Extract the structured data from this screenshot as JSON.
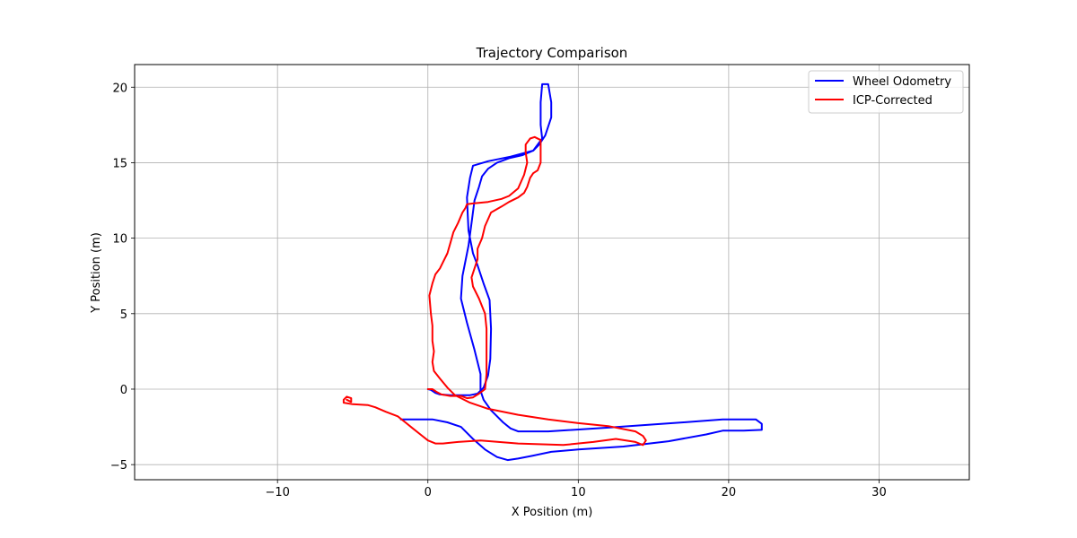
{
  "chart_data": {
    "type": "line",
    "title": "Trajectory Comparison",
    "xlabel": "X Position (m)",
    "ylabel": "Y Position (m)",
    "xlim": [
      -19.5,
      36
    ],
    "ylim": [
      -6,
      21.5
    ],
    "xticks": [
      -10,
      0,
      10,
      20,
      30
    ],
    "yticks": [
      -5,
      0,
      5,
      10,
      15,
      20
    ],
    "xtick_labels": [
      "−10",
      "0",
      "10",
      "20",
      "30"
    ],
    "ytick_labels": [
      "−5",
      "0",
      "5",
      "10",
      "15",
      "20"
    ],
    "grid": true,
    "legend_position": "top-right",
    "series": [
      {
        "name": "Wheel Odometry",
        "color": "#0000ff",
        "points": [
          [
            -1.8,
            -2.0
          ],
          [
            0.3,
            -2.0
          ],
          [
            1.3,
            -2.2
          ],
          [
            2.2,
            -2.5
          ],
          [
            3.0,
            -3.3
          ],
          [
            3.8,
            -4.0
          ],
          [
            4.6,
            -4.5
          ],
          [
            5.3,
            -4.7
          ],
          [
            6.0,
            -4.6
          ],
          [
            7.0,
            -4.4
          ],
          [
            8.2,
            -4.15
          ],
          [
            10.0,
            -4.0
          ],
          [
            13.0,
            -3.8
          ],
          [
            16.0,
            -3.45
          ],
          [
            18.5,
            -3.0
          ],
          [
            19.6,
            -2.75
          ],
          [
            21.0,
            -2.75
          ],
          [
            22.2,
            -2.7
          ],
          [
            22.2,
            -2.3
          ],
          [
            21.8,
            -2.0
          ],
          [
            19.6,
            -2.0
          ],
          [
            17.0,
            -2.2
          ],
          [
            12.0,
            -2.55
          ],
          [
            8.0,
            -2.8
          ],
          [
            6.0,
            -2.8
          ],
          [
            5.5,
            -2.6
          ],
          [
            5.0,
            -2.2
          ],
          [
            4.2,
            -1.4
          ],
          [
            3.7,
            -0.7
          ],
          [
            3.5,
            -0.1
          ],
          [
            3.5,
            1.0
          ],
          [
            3.1,
            2.6
          ],
          [
            2.6,
            4.4
          ],
          [
            2.2,
            6.0
          ],
          [
            2.3,
            7.5
          ],
          [
            2.7,
            9.5
          ],
          [
            2.9,
            11.0
          ],
          [
            3.1,
            12.5
          ],
          [
            3.4,
            13.4
          ],
          [
            3.6,
            14.1
          ],
          [
            4.0,
            14.6
          ],
          [
            4.6,
            15.0
          ],
          [
            5.4,
            15.3
          ],
          [
            6.3,
            15.5
          ],
          [
            7.0,
            15.8
          ],
          [
            7.4,
            16.2
          ],
          [
            7.8,
            16.8
          ],
          [
            8.2,
            18.0
          ],
          [
            8.2,
            19.0
          ],
          [
            8.0,
            20.2
          ],
          [
            7.6,
            20.2
          ],
          [
            7.5,
            19.0
          ],
          [
            7.5,
            17.5
          ],
          [
            7.6,
            16.6
          ],
          [
            7.0,
            15.8
          ],
          [
            5.5,
            15.4
          ],
          [
            4.0,
            15.1
          ],
          [
            3.0,
            14.8
          ],
          [
            2.8,
            14.0
          ],
          [
            2.6,
            12.7
          ],
          [
            2.65,
            11.5
          ],
          [
            2.7,
            10.5
          ],
          [
            3.0,
            9.0
          ],
          [
            3.3,
            8.2
          ],
          [
            3.7,
            7.0
          ],
          [
            4.1,
            5.9
          ],
          [
            4.2,
            4.0
          ],
          [
            4.15,
            2.0
          ],
          [
            4.0,
            0.9
          ],
          [
            3.7,
            0.1
          ],
          [
            3.3,
            -0.3
          ],
          [
            2.8,
            -0.4
          ],
          [
            2.2,
            -0.4
          ],
          [
            1.5,
            -0.4
          ],
          [
            0.8,
            -0.35
          ],
          [
            0.5,
            -0.25
          ],
          [
            0.2,
            -0.05
          ],
          [
            0.0,
            0.0
          ]
        ]
      },
      {
        "name": "ICP-Corrected",
        "color": "#ff0000",
        "points": [
          [
            0.0,
            0.0
          ],
          [
            0.3,
            0.0
          ],
          [
            0.6,
            -0.2
          ],
          [
            0.9,
            -0.35
          ],
          [
            1.5,
            -0.45
          ],
          [
            2.2,
            -0.45
          ],
          [
            2.6,
            -0.6
          ],
          [
            3.0,
            -0.55
          ],
          [
            3.4,
            -0.3
          ],
          [
            3.8,
            0.0
          ],
          [
            3.9,
            1.0
          ],
          [
            3.9,
            2.5
          ],
          [
            3.9,
            4.0
          ],
          [
            3.8,
            5.0
          ],
          [
            3.4,
            6.0
          ],
          [
            3.0,
            6.8
          ],
          [
            2.9,
            7.4
          ],
          [
            3.1,
            8.0
          ],
          [
            3.3,
            8.6
          ],
          [
            3.3,
            9.3
          ],
          [
            3.6,
            10.0
          ],
          [
            3.8,
            10.8
          ],
          [
            4.2,
            11.7
          ],
          [
            4.9,
            12.1
          ],
          [
            5.4,
            12.4
          ],
          [
            6.0,
            12.7
          ],
          [
            6.4,
            13.0
          ],
          [
            6.6,
            13.4
          ],
          [
            6.8,
            14.0
          ],
          [
            7.0,
            14.3
          ],
          [
            7.3,
            14.5
          ],
          [
            7.5,
            15.0
          ],
          [
            7.5,
            15.5
          ],
          [
            7.5,
            16.5
          ],
          [
            7.1,
            16.7
          ],
          [
            6.8,
            16.6
          ],
          [
            6.5,
            16.2
          ],
          [
            6.5,
            15.7
          ],
          [
            6.6,
            15.0
          ],
          [
            6.4,
            14.2
          ],
          [
            6.0,
            13.3
          ],
          [
            5.4,
            12.8
          ],
          [
            4.9,
            12.6
          ],
          [
            4.0,
            12.4
          ],
          [
            3.0,
            12.3
          ],
          [
            2.6,
            12.25
          ],
          [
            2.5,
            12.0
          ],
          [
            2.3,
            11.7
          ],
          [
            2.0,
            11.0
          ],
          [
            1.7,
            10.4
          ],
          [
            1.5,
            9.7
          ],
          [
            1.3,
            9.0
          ],
          [
            1.0,
            8.4
          ],
          [
            0.8,
            8.0
          ],
          [
            0.5,
            7.6
          ],
          [
            0.3,
            7.0
          ],
          [
            0.1,
            6.2
          ],
          [
            0.2,
            5.0
          ],
          [
            0.3,
            4.2
          ],
          [
            0.3,
            3.2
          ],
          [
            0.4,
            2.5
          ],
          [
            0.3,
            1.8
          ],
          [
            0.4,
            1.2
          ],
          [
            0.8,
            0.7
          ],
          [
            1.3,
            0.1
          ],
          [
            1.8,
            -0.4
          ],
          [
            2.8,
            -0.9
          ],
          [
            4.0,
            -1.3
          ],
          [
            6.0,
            -1.7
          ],
          [
            8.0,
            -2.0
          ],
          [
            10.0,
            -2.25
          ],
          [
            12.0,
            -2.45
          ],
          [
            13.8,
            -2.8
          ],
          [
            14.3,
            -3.1
          ],
          [
            14.5,
            -3.4
          ],
          [
            14.3,
            -3.7
          ],
          [
            13.8,
            -3.5
          ],
          [
            12.5,
            -3.3
          ],
          [
            11.0,
            -3.5
          ],
          [
            9.0,
            -3.7
          ],
          [
            6.0,
            -3.6
          ],
          [
            3.5,
            -3.4
          ],
          [
            2.0,
            -3.5
          ],
          [
            1.0,
            -3.6
          ],
          [
            0.5,
            -3.6
          ],
          [
            0.0,
            -3.4
          ],
          [
            -0.5,
            -3.0
          ],
          [
            -1.0,
            -2.6
          ],
          [
            -1.5,
            -2.2
          ],
          [
            -2.0,
            -1.8
          ],
          [
            -2.8,
            -1.5
          ],
          [
            -3.5,
            -1.2
          ],
          [
            -4.0,
            -1.05
          ],
          [
            -5.0,
            -1.0
          ],
          [
            -5.6,
            -0.9
          ],
          [
            -5.6,
            -0.7
          ],
          [
            -5.4,
            -0.5
          ],
          [
            -5.1,
            -0.6
          ],
          [
            -5.1,
            -0.85
          ],
          [
            -5.4,
            -0.7
          ],
          [
            -5.2,
            -0.8
          ]
        ]
      }
    ]
  }
}
